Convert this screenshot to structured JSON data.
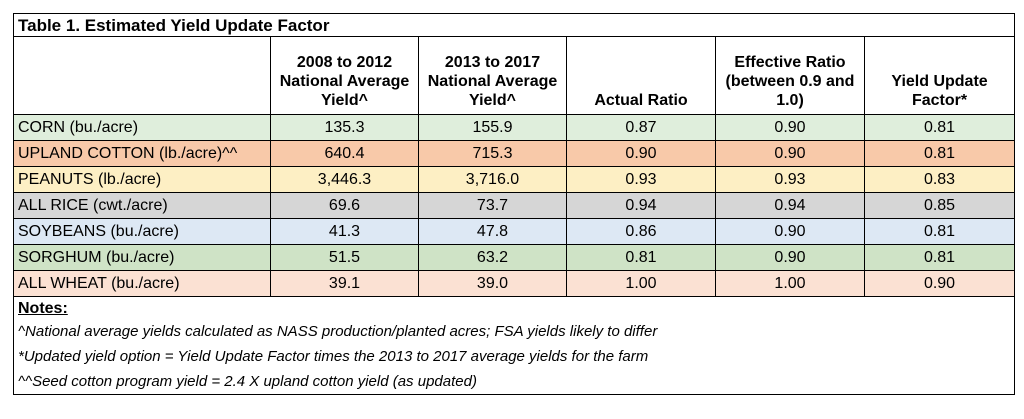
{
  "title": "Table 1.  Estimated Yield Update Factor",
  "headers": [
    "",
    "2008 to 2012 National Average Yield^",
    "2013 to 2017 National Average Yield^",
    "Actual Ratio",
    "Effective Ratio (between 0.9 and 1.0)",
    "Yield Update Factor*"
  ],
  "rows": [
    {
      "label": "CORN (bu./acre)",
      "y0812": "135.3",
      "y1317": "155.9",
      "actual": "0.87",
      "effective": "0.90",
      "factor": "0.81",
      "color": "#dfeedc"
    },
    {
      "label": "UPLAND COTTON (lb./acre)^^",
      "y0812": "640.4",
      "y1317": "715.3",
      "actual": "0.90",
      "effective": "0.90",
      "factor": "0.81",
      "color": "#f8c9a9"
    },
    {
      "label": "PEANUTS (lb./acre)",
      "y0812": "3,446.3",
      "y1317": "3,716.0",
      "actual": "0.93",
      "effective": "0.93",
      "factor": "0.83",
      "color": "#fdefc4"
    },
    {
      "label": "ALL RICE (cwt./acre)",
      "y0812": "69.6",
      "y1317": "73.7",
      "actual": "0.94",
      "effective": "0.94",
      "factor": "0.85",
      "color": "#d6d6d6"
    },
    {
      "label": "SOYBEANS (bu./acre)",
      "y0812": "41.3",
      "y1317": "47.8",
      "actual": "0.86",
      "effective": "0.90",
      "factor": "0.81",
      "color": "#dde8f4"
    },
    {
      "label": "SORGHUM (bu./acre)",
      "y0812": "51.5",
      "y1317": "63.2",
      "actual": "0.81",
      "effective": "0.90",
      "factor": "0.81",
      "color": "#cfe3c6"
    },
    {
      "label": "ALL WHEAT (bu./acre)",
      "y0812": "39.1",
      "y1317": "39.0",
      "actual": "1.00",
      "effective": "1.00",
      "factor": "0.90",
      "color": "#fbe1d3"
    }
  ],
  "notes": {
    "heading": "Notes:",
    "items": [
      "^National average yields calculated as NASS production/planted acres; FSA yields likely to differ",
      "*Updated yield option = Yield Update Factor times the 2013 to 2017 average yields for the farm",
      "^^Seed cotton program yield = 2.4 X upland cotton yield (as updated)"
    ]
  }
}
